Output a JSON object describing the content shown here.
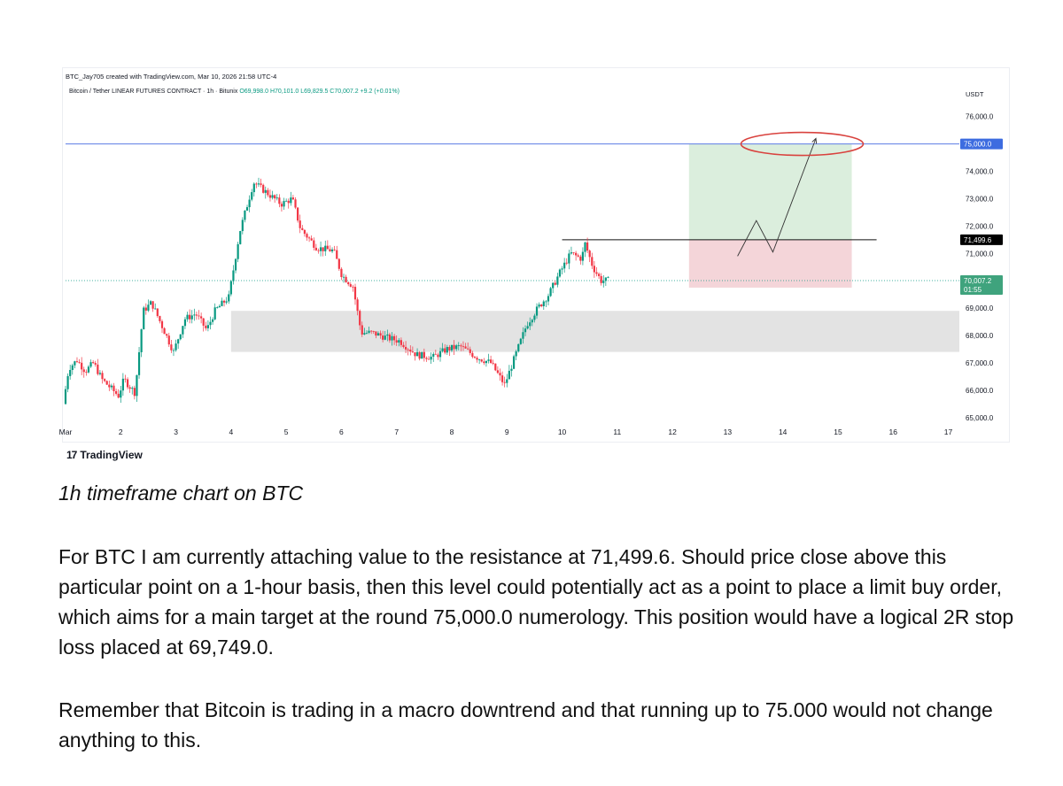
{
  "header": {
    "created_line": "BTC_Jay705 created with TradingView.com, Mar 10, 2026 21:58 UTC-4",
    "symbol": "Bitcoin / Tether LINEAR FUTURES CONTRACT · 1h · Bitunix",
    "ohlc": "O69,998.0 H70,101.0 L69,829.5 C70,007.2 +9.2 (+0.01%)"
  },
  "branding": {
    "logo_mark": "17",
    "logo_text": "TradingView"
  },
  "chart_data": {
    "type": "candlestick",
    "currency_label": "USDT",
    "x_tick_labels": [
      "Mar",
      "2",
      "3",
      "4",
      "5",
      "6",
      "7",
      "8",
      "9",
      "10",
      "11",
      "12",
      "13",
      "14",
      "15",
      "16",
      "17"
    ],
    "y_tick_values": [
      65000,
      66000,
      67000,
      68000,
      69000,
      70000,
      71000,
      72000,
      73000,
      74000,
      75000,
      76000
    ],
    "y_tick_labels": [
      "65,000.0",
      "66,000.0",
      "67,000.0",
      "68,000.0",
      "69,000.0",
      "70,000.0",
      "71,000.0",
      "72,000.0",
      "73,000.0",
      "74,000.0",
      "75,000.0",
      "76,000.0"
    ],
    "ylim": [
      64800,
      76700
    ],
    "xlim_days": [
      1,
      17.2
    ],
    "price_path": [
      [
        1.0,
        65500
      ],
      [
        1.1,
        66800
      ],
      [
        1.25,
        67100
      ],
      [
        1.4,
        66700
      ],
      [
        1.55,
        67000
      ],
      [
        1.7,
        66400
      ],
      [
        2.0,
        65800
      ],
      [
        2.1,
        66400
      ],
      [
        2.3,
        65900
      ],
      [
        2.45,
        68900
      ],
      [
        2.6,
        69200
      ],
      [
        2.8,
        68300
      ],
      [
        3.0,
        67400
      ],
      [
        3.2,
        68600
      ],
      [
        3.4,
        68800
      ],
      [
        3.6,
        68200
      ],
      [
        3.75,
        68900
      ],
      [
        4.0,
        69400
      ],
      [
        4.2,
        71800
      ],
      [
        4.45,
        73600
      ],
      [
        4.7,
        73200
      ],
      [
        4.95,
        72800
      ],
      [
        5.15,
        73000
      ],
      [
        5.3,
        71900
      ],
      [
        5.6,
        71200
      ],
      [
        5.9,
        71100
      ],
      [
        6.05,
        70200
      ],
      [
        6.25,
        69800
      ],
      [
        6.4,
        68100
      ],
      [
        6.6,
        68100
      ],
      [
        6.9,
        67900
      ],
      [
        7.1,
        67800
      ],
      [
        7.4,
        67300
      ],
      [
        7.7,
        67200
      ],
      [
        7.95,
        67500
      ],
      [
        8.2,
        67600
      ],
      [
        8.5,
        67200
      ],
      [
        8.75,
        67000
      ],
      [
        9.0,
        66200
      ],
      [
        9.2,
        67300
      ],
      [
        9.4,
        68400
      ],
      [
        9.6,
        69000
      ],
      [
        9.8,
        69500
      ],
      [
        10.0,
        70300
      ],
      [
        10.2,
        71000
      ],
      [
        10.4,
        70800
      ],
      [
        10.45,
        71400
      ],
      [
        10.6,
        70500
      ],
      [
        10.75,
        70000
      ],
      [
        10.85,
        70007.2
      ]
    ],
    "current_price": 70007.2,
    "current_price_label": "70,007.2",
    "countdown_label": "01:55",
    "target_level": 75000,
    "target_label": "75,000.0",
    "resistance_level": 71499.6,
    "resistance_label": "71,499.6",
    "stop_level": 69749.0,
    "demand_zone": [
      67400,
      68900
    ],
    "position_days": [
      12.3,
      15.25
    ],
    "projection_path": [
      [
        13.18,
        70900
      ],
      [
        13.52,
        72200
      ],
      [
        13.82,
        71050
      ],
      [
        14.6,
        75200
      ]
    ],
    "target_ellipse_center": [
      14.35,
      75000
    ],
    "colors": {
      "up": "#089981",
      "down": "#f23645",
      "target_line": "#5b7be5",
      "target_tag": "#3d6ce0",
      "resistance_tag": "#000000",
      "price_tag": "#3fa37d",
      "profit_fill": "#dbeedd",
      "loss_fill": "#f4d5d9",
      "zone_fill": "#e3e3e3",
      "ellipse": "#d9423e"
    }
  },
  "caption": "1h timeframe chart on BTC",
  "paragraphs": [
    "For BTC I am currently attaching value to the resistance at 71,499.6. Should price close above this particular point on a 1-hour basis, then this level could potentially act as a point to place a limit buy order, which aims for a main target at the round 75,000.0 numerology. This position would have a logical 2R stop loss placed at 69,749.0.",
    "Remember that Bitcoin is trading in a macro downtrend and that running up to 75.000 would not change anything to this."
  ]
}
